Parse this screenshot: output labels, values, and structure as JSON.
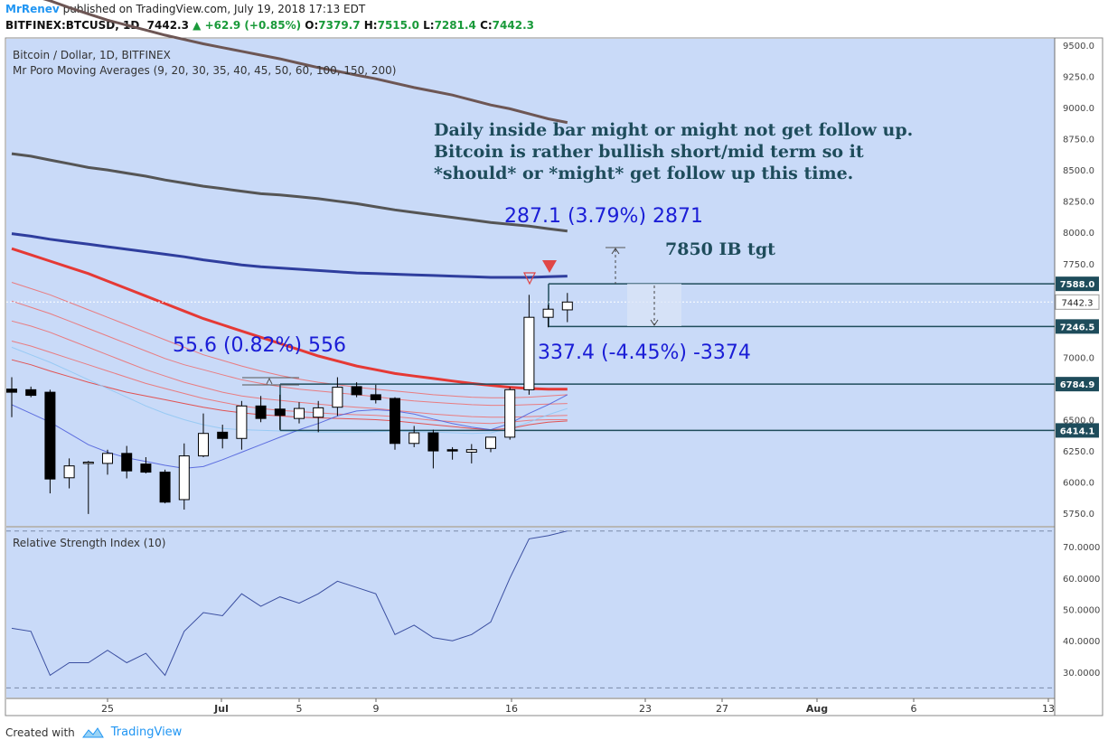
{
  "header": {
    "author": "MrRenev",
    "published": "published on TradingView.com, July 19, 2018 17:13 EDT",
    "symbol": "BITFINEX:BTCUSD, 1D",
    "last": "7442.3",
    "change": "+62.9 (+0.85%)",
    "o_label": "O:",
    "o": "7379.7",
    "h_label": "H:",
    "h": "7515.0",
    "l_label": "L:",
    "l": "7281.4",
    "c_label": "C:",
    "c": "7442.3"
  },
  "footer": {
    "created_with": "Created with",
    "brand": "TradingView"
  },
  "colors": {
    "plot_bg": "#c9daf8",
    "up": "#ffffff",
    "down": "#000000",
    "ma_dark": "#555555",
    "ma_brown": "#6d5654",
    "ma_navy": "#2f3e9e",
    "ma_red": "#e53935",
    "ma_blue": "#4a5adb",
    "ma_lightblue": "#8fc7f3",
    "text_blue": "#1a1dd6",
    "text_dark": "#1e4c5b",
    "rsi": "#3a4ea0"
  },
  "chart_data": [
    {
      "type": "candlestick",
      "title": "Bitcoin / Dollar, 1D, BITFINEX",
      "subtitle": "Mr Poro Moving Averages (9, 20, 30, 35, 40, 45, 50, 60, 100, 150, 200)",
      "ylim": [
        5650,
        9550
      ],
      "y_ticks": [
        "9500.0",
        "9250.0",
        "9000.0",
        "8750.0",
        "8500.0",
        "8250.0",
        "8000.0",
        "7750.0",
        "7500.0",
        "7250.0",
        "7000.0",
        "6750.0",
        "6500.0",
        "6250.0",
        "6000.0",
        "5750.0"
      ],
      "y_tick_values": [
        9500,
        9250,
        9000,
        8750,
        8500,
        8250,
        8000,
        7750,
        7500,
        7250,
        7000,
        6750,
        6500,
        6250,
        6000,
        5750
      ],
      "x_ticks": [
        "25",
        "Jul",
        "5",
        "9",
        "16",
        "23",
        "27",
        "Aug",
        "6",
        "13"
      ],
      "candles": [
        [
          6745,
          6840,
          6520,
          6720
        ],
        [
          6740,
          6765,
          6680,
          6695
        ],
        [
          6720,
          6740,
          5910,
          6025
        ],
        [
          6035,
          6190,
          5950,
          6130
        ],
        [
          6160,
          6170,
          5745,
          6160
        ],
        [
          6150,
          6260,
          6060,
          6230
        ],
        [
          6230,
          6290,
          6030,
          6090
        ],
        [
          6145,
          6200,
          6070,
          6080
        ],
        [
          6080,
          6100,
          5830,
          5840
        ],
        [
          5860,
          6310,
          5780,
          6210
        ],
        [
          6210,
          6550,
          6200,
          6390
        ],
        [
          6400,
          6460,
          6270,
          6350
        ],
        [
          6350,
          6650,
          6260,
          6610
        ],
        [
          6610,
          6690,
          6480,
          6510
        ],
        [
          6585,
          6700,
          6420,
          6535
        ],
        [
          6510,
          6640,
          6470,
          6590
        ],
        [
          6520,
          6650,
          6400,
          6595
        ],
        [
          6600,
          6840,
          6530,
          6760
        ],
        [
          6765,
          6800,
          6680,
          6700
        ],
        [
          6700,
          6780,
          6630,
          6660
        ],
        [
          6670,
          6680,
          6260,
          6310
        ],
        [
          6310,
          6450,
          6280,
          6395
        ],
        [
          6395,
          6420,
          6110,
          6250
        ],
        [
          6260,
          6280,
          6180,
          6250
        ],
        [
          6240,
          6305,
          6150,
          6260
        ],
        [
          6270,
          6360,
          6240,
          6360
        ],
        [
          6360,
          6760,
          6340,
          6740
        ],
        [
          6740,
          7500,
          6700,
          7320
        ],
        [
          7320,
          7420,
          7240,
          7385
        ],
        [
          7379.7,
          7515,
          7281.4,
          7442.3
        ]
      ],
      "moving_averages": [
        {
          "period": "200",
          "color": "#6d5654",
          "values": [
            9950,
            9900,
            9855,
            9800,
            9750,
            9700,
            9660,
            9620,
            9580,
            9545,
            9510,
            9480,
            9450,
            9420,
            9390,
            9355,
            9320,
            9290,
            9260,
            9230,
            9195,
            9160,
            9130,
            9100,
            9060,
            9020,
            8990,
            8950,
            8910,
            8880
          ]
        },
        {
          "period": "150",
          "color": "#555555",
          "values": [
            8630,
            8610,
            8580,
            8550,
            8520,
            8500,
            8475,
            8450,
            8420,
            8395,
            8370,
            8350,
            8330,
            8310,
            8300,
            8285,
            8270,
            8250,
            8230,
            8205,
            8180,
            8160,
            8140,
            8120,
            8100,
            8080,
            8065,
            8050,
            8030,
            8010
          ]
        },
        {
          "period": "100",
          "color": "#2f3e9e",
          "values": [
            7990,
            7970,
            7945,
            7925,
            7905,
            7885,
            7865,
            7845,
            7825,
            7805,
            7780,
            7760,
            7740,
            7725,
            7715,
            7705,
            7695,
            7685,
            7675,
            7670,
            7665,
            7660,
            7655,
            7650,
            7645,
            7640,
            7640,
            7640,
            7645,
            7650
          ]
        },
        {
          "period": "60",
          "color": "#e53935",
          "values": [
            7870,
            7820,
            7770,
            7720,
            7670,
            7610,
            7550,
            7490,
            7430,
            7370,
            7310,
            7260,
            7210,
            7160,
            7110,
            7060,
            7010,
            6970,
            6930,
            6900,
            6870,
            6850,
            6830,
            6810,
            6790,
            6775,
            6760,
            6750,
            6745,
            6745
          ]
        },
        {
          "period": "50",
          "color": "#ef6b6b",
          "values": [
            7600,
            7550,
            7500,
            7440,
            7380,
            7320,
            7260,
            7200,
            7140,
            7080,
            7020,
            6975,
            6930,
            6890,
            6855,
            6825,
            6800,
            6780,
            6760,
            6745,
            6730,
            6715,
            6700,
            6690,
            6680,
            6675,
            6675,
            6680,
            6690,
            6700
          ]
        },
        {
          "period": "45",
          "color": "#ef6b6b",
          "values": [
            7450,
            7400,
            7350,
            7290,
            7230,
            7170,
            7110,
            7050,
            6990,
            6940,
            6900,
            6860,
            6820,
            6790,
            6765,
            6745,
            6730,
            6715,
            6700,
            6685,
            6665,
            6650,
            6640,
            6630,
            6620,
            6615,
            6615,
            6620,
            6625,
            6630
          ]
        },
        {
          "period": "40",
          "color": "#ef6b6b",
          "values": [
            7290,
            7250,
            7200,
            7140,
            7080,
            7020,
            6960,
            6900,
            6850,
            6800,
            6760,
            6720,
            6690,
            6670,
            6655,
            6640,
            6625,
            6610,
            6600,
            6590,
            6575,
            6560,
            6545,
            6535,
            6525,
            6520,
            6520,
            6525,
            6530,
            6535
          ]
        },
        {
          "period": "35",
          "color": "#ef6b6b",
          "values": [
            7130,
            7090,
            7040,
            6990,
            6940,
            6890,
            6840,
            6790,
            6750,
            6710,
            6670,
            6640,
            6610,
            6590,
            6575,
            6565,
            6555,
            6545,
            6540,
            6535,
            6525,
            6510,
            6495,
            6485,
            6475,
            6470,
            6480,
            6495,
            6500,
            6500
          ]
        },
        {
          "period": "30",
          "color": "#e53935",
          "values": [
            6980,
            6940,
            6890,
            6845,
            6800,
            6760,
            6720,
            6690,
            6660,
            6630,
            6600,
            6575,
            6555,
            6540,
            6530,
            6520,
            6515,
            6510,
            6505,
            6500,
            6490,
            6475,
            6460,
            6445,
            6430,
            6420,
            6430,
            6460,
            6480,
            6490
          ]
        },
        {
          "period": "20",
          "color": "#8fc7f3",
          "values": [
            7080,
            7020,
            6960,
            6890,
            6820,
            6750,
            6680,
            6610,
            6550,
            6500,
            6460,
            6430,
            6420,
            6415,
            6410,
            6405,
            6400,
            6400,
            6400,
            6405,
            6410,
            6405,
            6400,
            6395,
            6390,
            6395,
            6430,
            6480,
            6540,
            6590
          ]
        },
        {
          "period": "9",
          "color": "#4a5adb",
          "values": [
            6620,
            6550,
            6480,
            6390,
            6300,
            6240,
            6195,
            6165,
            6135,
            6110,
            6125,
            6180,
            6240,
            6300,
            6360,
            6420,
            6470,
            6530,
            6570,
            6580,
            6570,
            6545,
            6505,
            6470,
            6440,
            6420,
            6470,
            6550,
            6620,
            6700
          ]
        }
      ],
      "levels": [
        {
          "label": "7588.0",
          "value": 7588.0
        },
        {
          "label": "7246.5",
          "value": 7246.5
        },
        {
          "label": "6784.9",
          "value": 6784.9
        },
        {
          "label": "6414.1",
          "value": 6414.1
        }
      ],
      "annotations": {
        "note_lines": [
          "Daily inside bar might or might not get follow up.",
          "Bitcoin is rather bullish short/mid term so it",
          "*should* or *might* get follow up this time."
        ],
        "measure_up": "287.1 (3.79%) 2871",
        "target": "7850 IB tgt",
        "measure_small": "55.6 (0.82%) 556",
        "measure_down": "337.4 (-4.45%) -3374",
        "last_price": "7442.3"
      }
    },
    {
      "type": "line",
      "title": "Relative Strength Index (10)",
      "ylim": [
        22.5,
        75.5
      ],
      "y_ticks": [
        "70.0000",
        "60.0000",
        "50.0000",
        "40.0000",
        "30.0000"
      ],
      "y_tick_values": [
        70,
        60,
        50,
        40,
        30
      ],
      "bands": [
        75,
        25
      ],
      "series": [
        {
          "values": [
            44,
            43,
            29,
            33,
            33,
            37,
            33,
            36,
            29,
            43,
            49,
            48,
            55,
            51,
            54,
            52,
            55,
            59,
            57,
            55,
            42,
            45,
            41,
            40,
            42,
            46,
            60,
            72.5,
            73.5,
            75
          ]
        }
      ]
    }
  ]
}
